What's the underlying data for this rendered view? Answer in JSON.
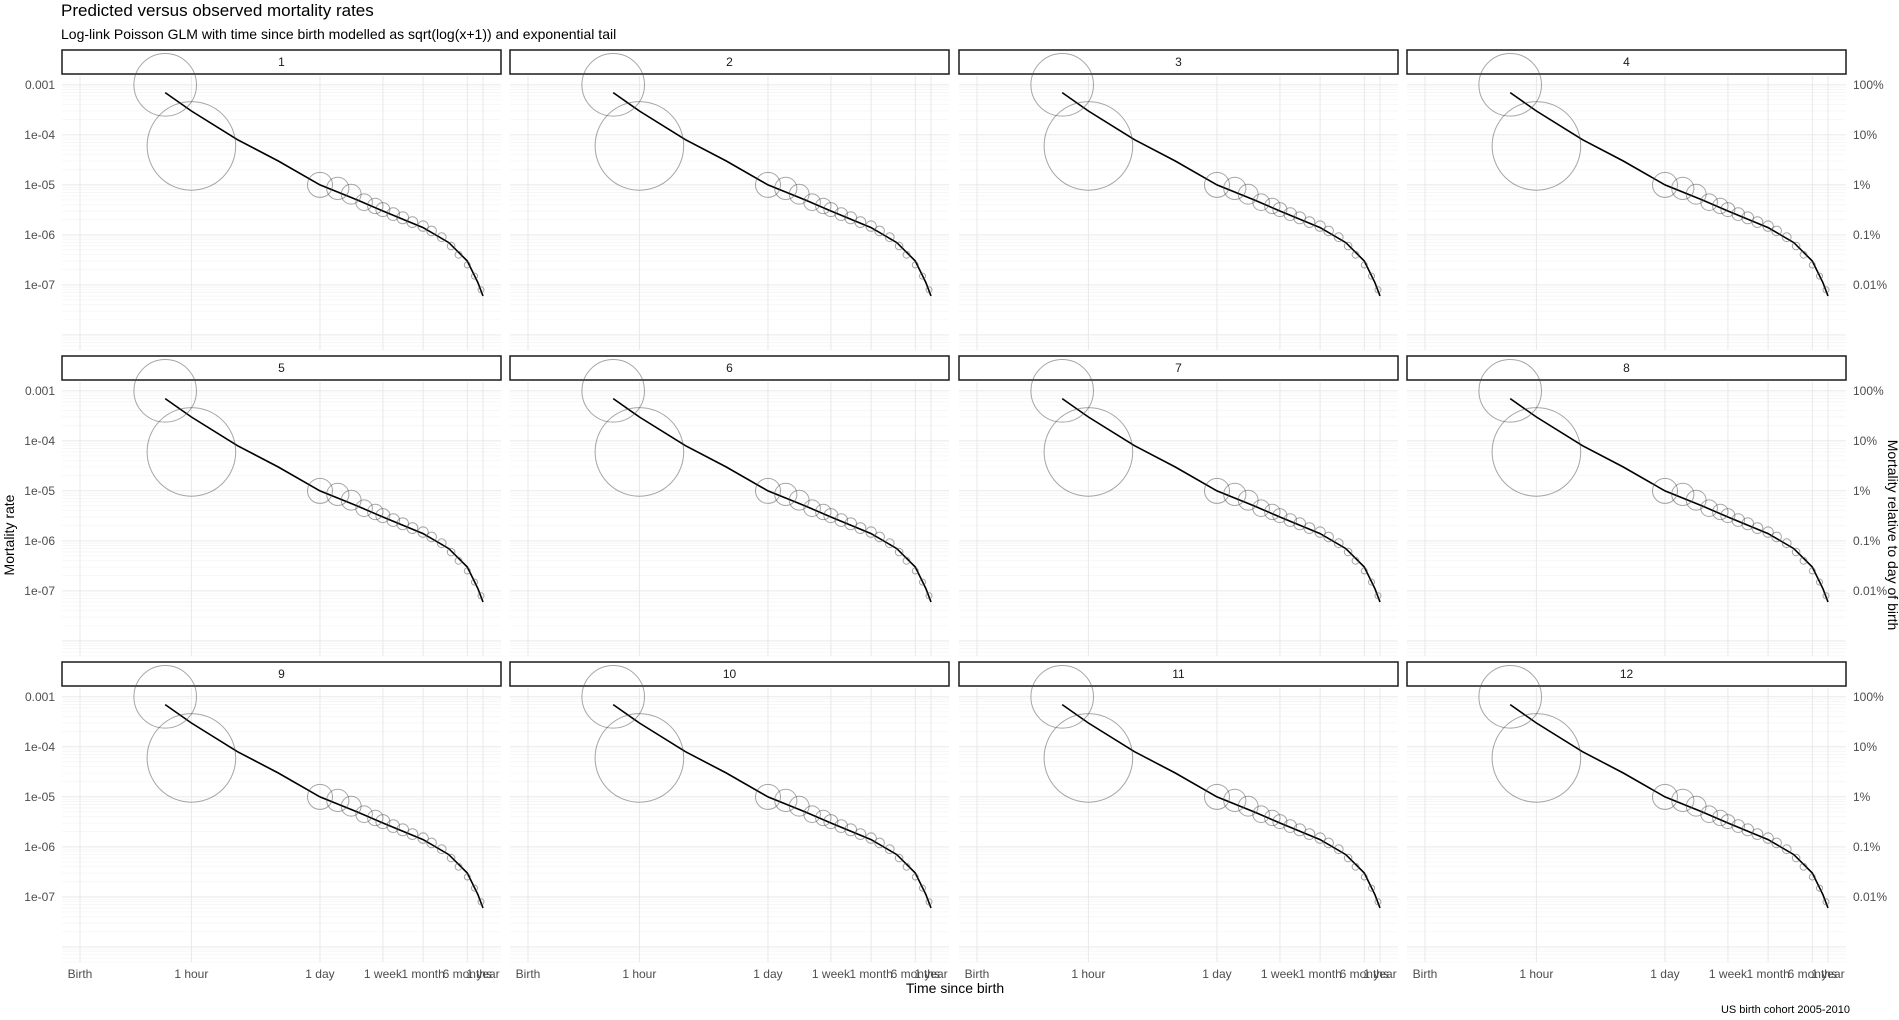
{
  "title": "Predicted versus observed mortality rates",
  "subtitle": "Log-link Poisson GLM with time since birth modelled as sqrt(log(x+1)) and exponential tail",
  "caption": "US birth cohort 2005-2010",
  "chart_data": {
    "type": "scatter",
    "facet_by": "panel",
    "panels": [
      "1",
      "2",
      "3",
      "4",
      "5",
      "6",
      "7",
      "8",
      "9",
      "10",
      "11",
      "12"
    ],
    "xlabel": "Time since birth",
    "ylabel": "Mortality rate",
    "y2label": "Mortality relative to day of birth",
    "x_scale": "sqrt(log(x+1))",
    "x_units": "hours since birth",
    "xlim_hours": [
      0,
      8760
    ],
    "x_ticks": [
      {
        "label": "Birth",
        "hours": 0
      },
      {
        "label": "1 hour",
        "hours": 1
      },
      {
        "label": "1 day",
        "hours": 24
      },
      {
        "label": "1 week",
        "hours": 168
      },
      {
        "label": "1 month",
        "hours": 720
      },
      {
        "label": "6 months",
        "hours": 4380
      },
      {
        "label": "1 year",
        "hours": 8760
      }
    ],
    "y_scale": "log10",
    "ylim": [
      5e-09,
      0.0015
    ],
    "y_ticks": [
      {
        "label": "0.001",
        "value": 0.001
      },
      {
        "label": "1e-04",
        "value": 0.0001
      },
      {
        "label": "1e-05",
        "value": 1e-05
      },
      {
        "label": "1e-06",
        "value": 1e-06
      },
      {
        "label": "1e-07",
        "value": 1e-07
      }
    ],
    "y2_ticks": [
      {
        "label": "100%",
        "value": 0.001
      },
      {
        "label": "10%",
        "value": 0.0001
      },
      {
        "label": "1%",
        "value": 1e-05
      },
      {
        "label": "0.1%",
        "value": 1e-06
      },
      {
        "label": "0.01%",
        "value": 1e-07
      }
    ],
    "series": [
      {
        "role": "observed",
        "mark": "point",
        "fill": "none",
        "stroke": "#4d4d4d",
        "opacity": 0.5,
        "size_scaled_by": "deaths"
      },
      {
        "role": "predicted",
        "mark": "line",
        "stroke": "#000000"
      }
    ],
    "observed_points": [
      {
        "hours": 0.5,
        "rate": 0.001,
        "deaths": 2000
      },
      {
        "hours": 1,
        "rate": 6e-05,
        "deaths": 4000
      },
      {
        "hours": 24,
        "rate": 1e-05,
        "deaths": 320
      },
      {
        "hours": 40,
        "rate": 8.5e-06,
        "deaths": 250
      },
      {
        "hours": 60,
        "rate": 6.5e-06,
        "deaths": 200
      },
      {
        "hours": 90,
        "rate": 4.5e-06,
        "deaths": 140
      },
      {
        "hours": 130,
        "rate": 3.8e-06,
        "deaths": 120
      },
      {
        "hours": 168,
        "rate": 3.2e-06,
        "deaths": 100
      },
      {
        "hours": 240,
        "rate": 2.6e-06,
        "deaths": 80
      },
      {
        "hours": 336,
        "rate": 2.2e-06,
        "deaths": 70
      },
      {
        "hours": 480,
        "rate": 1.8e-06,
        "deaths": 60
      },
      {
        "hours": 720,
        "rate": 1.5e-06,
        "deaths": 55
      },
      {
        "hours": 1000,
        "rate": 1.2e-06,
        "deaths": 48
      },
      {
        "hours": 1500,
        "rate": 9e-07,
        "deaths": 40
      },
      {
        "hours": 2200,
        "rate": 6e-07,
        "deaths": 30
      },
      {
        "hours": 3000,
        "rate": 4e-07,
        "deaths": 24
      },
      {
        "hours": 4380,
        "rate": 2.5e-07,
        "deaths": 18
      },
      {
        "hours": 6000,
        "rate": 1.5e-07,
        "deaths": 12
      },
      {
        "hours": 8000,
        "rate": 8e-08,
        "deaths": 8
      }
    ],
    "predicted_line": [
      {
        "hours": 0.5,
        "rate": 0.0007
      },
      {
        "hours": 1,
        "rate": 0.0003
      },
      {
        "hours": 3,
        "rate": 8e-05
      },
      {
        "hours": 8,
        "rate": 3e-05
      },
      {
        "hours": 24,
        "rate": 1e-05
      },
      {
        "hours": 72,
        "rate": 5e-06
      },
      {
        "hours": 168,
        "rate": 3e-06
      },
      {
        "hours": 720,
        "rate": 1.4e-06
      },
      {
        "hours": 2000,
        "rate": 7e-07
      },
      {
        "hours": 4380,
        "rate": 3e-07
      },
      {
        "hours": 7000,
        "rate": 1.1e-07
      },
      {
        "hours": 8760,
        "rate": 6e-08
      }
    ]
  }
}
